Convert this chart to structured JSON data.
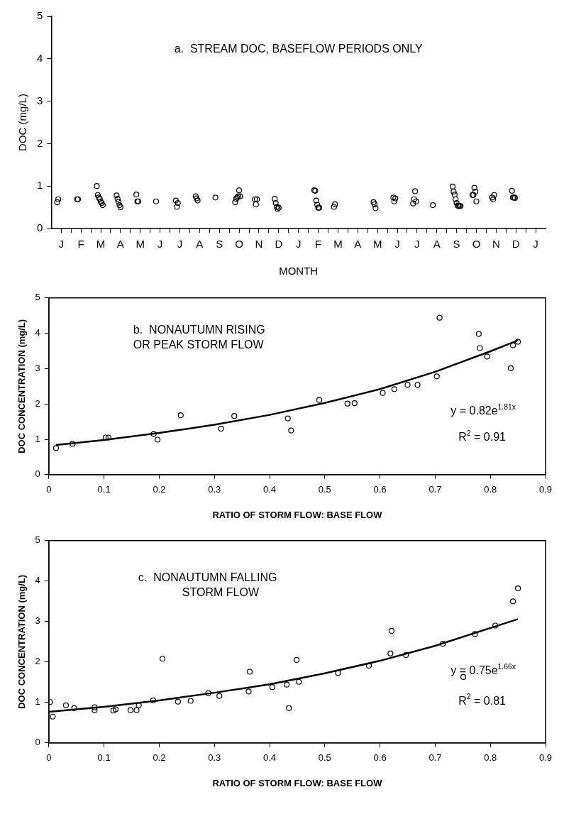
{
  "chart_data": [
    {
      "type": "scatter",
      "ylabel": "DOC (mg/L)",
      "xlabel": "MONTH",
      "annotations": [
        "a.  STREAM DOC, BASEFLOW PERIODS ONLY"
      ],
      "marker": "circle",
      "legend": false,
      "grid": false,
      "categories": [
        "J",
        "F",
        "M",
        "A",
        "M",
        "J",
        "J",
        "A",
        "S",
        "O",
        "N",
        "D",
        "J",
        "F",
        "M",
        "A",
        "M",
        "J",
        "J",
        "A",
        "S",
        "O",
        "N",
        "D",
        "J"
      ],
      "ylim": [
        0,
        5
      ],
      "yticks": [
        0,
        1,
        2,
        3,
        4,
        5
      ],
      "series": [
        {
          "color": "#000000",
          "values": [
            0.62,
            0.69,
            1.0,
            0.78,
            0.8,
            0.64,
            0.66,
            0.76,
            0.73,
            0.62,
            0.69,
            0.7,
            null,
            0.9,
            0.51,
            null,
            0.62,
            0.73,
            0.59,
            0.55,
            0.99,
            0.79,
            0.73,
            0.89,
            null
          ]
        },
        {
          "color": "#000000",
          "values": [
            0.69,
            0.69,
            0.79,
            0.7,
            0.64,
            null,
            0.51,
            0.71,
            null,
            0.7,
            0.57,
            0.6,
            null,
            0.89,
            0.57,
            null,
            0.57,
            0.64,
            0.69,
            null,
            0.87,
            0.79,
            0.69,
            0.73,
            null
          ]
        },
        {
          "color": "#000000",
          "values": [
            null,
            null,
            0.73,
            0.63,
            0.64,
            null,
            0.6,
            0.66,
            null,
            0.73,
            0.69,
            0.51,
            null,
            0.66,
            null,
            null,
            0.48,
            0.71,
            0.88,
            null,
            0.8,
            0.96,
            0.79,
            0.73,
            null
          ]
        },
        {
          "color": "#000000",
          "values": [
            null,
            null,
            0.7,
            0.55,
            null,
            null,
            null,
            null,
            null,
            0.76,
            null,
            0.46,
            null,
            0.56,
            null,
            null,
            null,
            null,
            0.64,
            null,
            0.69,
            0.87,
            null,
            0.72,
            null
          ]
        },
        {
          "color": "#000000",
          "values": [
            null,
            null,
            0.63,
            0.5,
            null,
            null,
            null,
            null,
            null,
            0.9,
            null,
            0.49,
            null,
            0.49,
            null,
            null,
            null,
            null,
            null,
            null,
            0.6,
            0.64,
            null,
            null,
            null
          ]
        },
        {
          "color": "#000000",
          "values": [
            null,
            null,
            0.6,
            null,
            null,
            null,
            null,
            null,
            null,
            0.76,
            null,
            null,
            null,
            0.49,
            null,
            null,
            null,
            null,
            null,
            null,
            0.54,
            null,
            null,
            null,
            null
          ]
        },
        {
          "color": "#000000",
          "values": [
            null,
            null,
            0.55,
            null,
            null,
            null,
            null,
            null,
            null,
            null,
            null,
            null,
            null,
            null,
            null,
            null,
            null,
            null,
            null,
            null,
            0.53,
            null,
            null,
            null,
            null
          ]
        },
        {
          "color": "#000000",
          "values": [
            null,
            null,
            null,
            null,
            null,
            null,
            null,
            null,
            null,
            null,
            null,
            null,
            null,
            null,
            null,
            null,
            null,
            null,
            null,
            null,
            0.53,
            null,
            null,
            null,
            null
          ]
        },
        {
          "color": "#000000",
          "values": [
            null,
            null,
            null,
            null,
            null,
            null,
            null,
            null,
            null,
            null,
            null,
            null,
            null,
            null,
            null,
            null,
            null,
            null,
            null,
            null,
            0.53,
            null,
            null,
            null,
            null
          ]
        }
      ]
    },
    {
      "type": "scatter",
      "ylabel": "DOC CONCENTRATION (mg/L)",
      "xlabel": "RATIO OF STORM FLOW: BASE FLOW",
      "annotations": [
        "b.  NONAUTUMN RISING\nOR PEAK STORM FLOW",
        "y = 0.82e$^{1.81x}$",
        "R$^{2}$ = 0.91"
      ],
      "marker": "circle",
      "legend": false,
      "grid": false,
      "xlim": [
        0,
        0.9
      ],
      "xticks": [
        0,
        0.1,
        0.2,
        0.3,
        0.4,
        0.5,
        0.6,
        0.7,
        0.8,
        0.9
      ],
      "ylim": [
        0,
        5
      ],
      "yticks": [
        0,
        1,
        2,
        3,
        4,
        5
      ],
      "series": [
        {
          "color": "#000000",
          "x": [
            0.013,
            0.043,
            0.103,
            0.108,
            0.19,
            0.197,
            0.239,
            0.312,
            0.336,
            0.433,
            0.439,
            0.49,
            0.541,
            0.554,
            0.605,
            0.626,
            0.65,
            0.668,
            0.703,
            0.708,
            0.779,
            0.781,
            0.794,
            0.837,
            0.841,
            0.85
          ],
          "values": [
            0.75,
            0.87,
            1.05,
            1.05,
            1.15,
            0.99,
            1.68,
            1.3,
            1.66,
            1.59,
            1.25,
            2.11,
            2.01,
            2.02,
            2.31,
            2.42,
            2.54,
            2.54,
            2.78,
            4.44,
            3.98,
            3.58,
            3.34,
            3.01,
            3.66,
            3.76
          ]
        },
        {
          "type": "line",
          "color": "#000000",
          "marker": "none",
          "x": [
            0.013,
            0.1,
            0.2,
            0.3,
            0.4,
            0.5,
            0.6,
            0.7,
            0.8,
            0.85
          ],
          "values": [
            0.84,
            0.98,
            1.18,
            1.41,
            1.69,
            2.03,
            2.42,
            2.91,
            3.49,
            3.8
          ]
        }
      ]
    },
    {
      "type": "scatter",
      "ylabel": "DOC CONCENTRATION (mg/L)",
      "xlabel": "RATIO OF STORM FLOW: BASE FLOW",
      "annotations": [
        "c.  NONAUTUMN FALLING\nSTORM FLOW",
        "y = 0.75e$^{1.66x}$",
        "R$^{2}$ = 0.81"
      ],
      "marker": "circle",
      "legend": false,
      "grid": false,
      "xlim": [
        0,
        0.9
      ],
      "xticks": [
        0,
        0.1,
        0.2,
        0.3,
        0.4,
        0.5,
        0.6,
        0.7,
        0.8,
        0.9
      ],
      "ylim": [
        0,
        5
      ],
      "yticks": [
        0,
        1,
        2,
        3,
        4,
        5
      ],
      "series": [
        {
          "color": "#000000",
          "x": [
            0.002,
            0.007,
            0.031,
            0.046,
            0.083,
            0.083,
            0.117,
            0.121,
            0.148,
            0.159,
            0.163,
            0.189,
            0.206,
            0.234,
            0.257,
            0.289,
            0.309,
            0.362,
            0.364,
            0.405,
            0.431,
            0.435,
            0.449,
            0.453,
            0.524,
            0.58,
            0.619,
            0.621,
            0.647,
            0.714,
            0.751,
            0.772,
            0.809,
            0.841,
            0.85
          ],
          "values": [
            1.01,
            0.65,
            0.93,
            0.86,
            0.88,
            0.81,
            0.8,
            0.83,
            0.81,
            0.81,
            0.93,
            1.05,
            2.08,
            1.02,
            1.04,
            1.23,
            1.16,
            1.27,
            1.76,
            1.38,
            1.44,
            0.86,
            2.05,
            1.51,
            1.73,
            1.91,
            2.21,
            2.77,
            2.17,
            2.45,
            1.63,
            2.69,
            2.9,
            3.5,
            3.82
          ]
        },
        {
          "type": "line",
          "color": "#000000",
          "marker": "none",
          "x": [
            0,
            0.1,
            0.2,
            0.3,
            0.4,
            0.5,
            0.6,
            0.7,
            0.8,
            0.85
          ],
          "values": [
            0.77,
            0.89,
            1.05,
            1.24,
            1.45,
            1.72,
            2.03,
            2.4,
            2.84,
            3.06
          ]
        }
      ]
    }
  ]
}
